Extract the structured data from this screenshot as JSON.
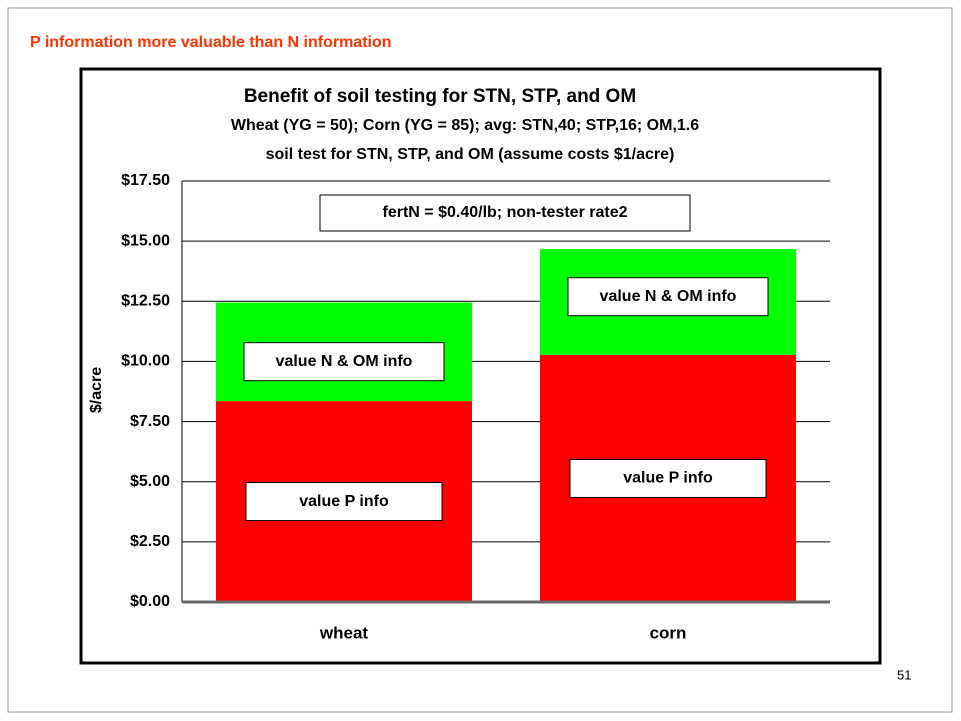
{
  "header": "P information more valuable than N information",
  "page_number": "51",
  "chart_data": {
    "type": "stacked_bar",
    "title": "Benefit of soil testing for STN, STP, and OM",
    "subtitle": [
      "Wheat (YG = 50); Corn (YG = 85); avg: STN,40; STP,16; OM,1.6",
      "soil test for STN, STP, and OM (assume costs $1/acre)"
    ],
    "annotation": "fertN = $0.40/lb; non-tester rate2",
    "y_label": "$/acre",
    "categories": [
      "wheat",
      "corn"
    ],
    "series": [
      {
        "name": "value P info",
        "color": "#ff0000",
        "values": [
          8.35,
          10.27
        ]
      },
      {
        "name": "value N & OM info",
        "color": "#00ff00",
        "values": [
          4.1,
          4.4
        ]
      }
    ],
    "ylim": [
      0,
      17.5
    ],
    "yticks": [
      {
        "value": 0,
        "label": "$0.00"
      },
      {
        "value": 2.5,
        "label": "$2.50"
      },
      {
        "value": 5,
        "label": "$5.00"
      },
      {
        "value": 7.5,
        "label": "$7.50"
      },
      {
        "value": 10,
        "label": "$10.00"
      },
      {
        "value": 12.5,
        "label": "$12.50"
      },
      {
        "value": 15,
        "label": "$15.00"
      },
      {
        "value": 17.5,
        "label": "$17.50"
      }
    ],
    "grid": true
  }
}
